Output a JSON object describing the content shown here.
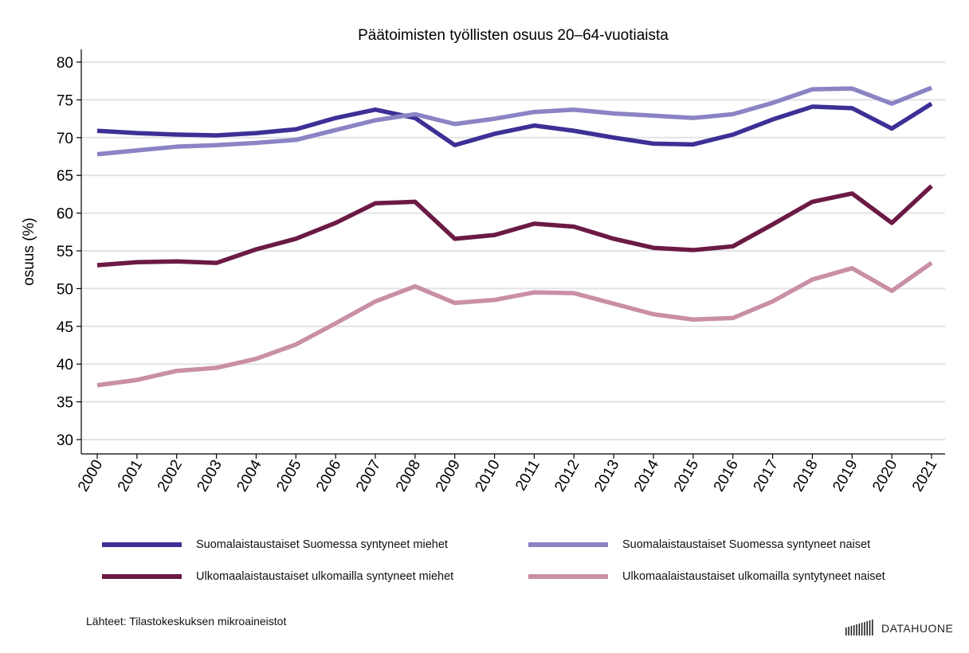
{
  "chart_data": {
    "type": "line",
    "title": "Päätoimisten työllisten osuus 20–64-vuotiaista",
    "xlabel": "",
    "ylabel": "osuus (%)",
    "ylim": [
      30,
      80
    ],
    "yticks": [
      30,
      35,
      40,
      45,
      50,
      55,
      60,
      65,
      70,
      75,
      80
    ],
    "grid": true,
    "legend_placement": "bottom",
    "x": [
      2000,
      2001,
      2002,
      2003,
      2004,
      2005,
      2006,
      2007,
      2008,
      2009,
      2010,
      2011,
      2012,
      2013,
      2014,
      2015,
      2016,
      2017,
      2018,
      2019,
      2020,
      2021
    ],
    "series": [
      {
        "name": "Suomalaistaustaiset Suomessa syntyneet miehet",
        "color": "#3c3096",
        "values": [
          70.9,
          70.6,
          70.4,
          70.3,
          70.6,
          71.1,
          72.6,
          73.7,
          72.6,
          69.0,
          70.5,
          71.6,
          70.9,
          70.0,
          69.2,
          69.1,
          70.4,
          72.4,
          74.1,
          73.9,
          71.2,
          74.5
        ]
      },
      {
        "name": "Suomalaistaustaiset Suomessa syntyneet naiset",
        "color": "#8a84c4",
        "values": [
          67.8,
          68.3,
          68.8,
          69.0,
          69.3,
          69.7,
          71.0,
          72.3,
          73.1,
          71.8,
          72.5,
          73.4,
          73.7,
          73.2,
          72.9,
          72.6,
          73.1,
          74.6,
          76.4,
          76.5,
          74.5,
          76.6
        ]
      },
      {
        "name": "Ulkomaalaistaustaiset ulkomailla syntyneet miehet",
        "color": "#6b1a45",
        "values": [
          53.1,
          53.5,
          53.6,
          53.4,
          55.2,
          56.6,
          58.7,
          61.3,
          61.5,
          56.6,
          57.1,
          58.6,
          58.2,
          56.6,
          55.4,
          55.1,
          55.6,
          58.5,
          61.5,
          62.6,
          58.7,
          63.6
        ]
      },
      {
        "name": "Ulkomaalaistaustaiset ulkomailla syntytyneet naiset",
        "color": "#c98fa6",
        "values": [
          37.2,
          37.9,
          39.1,
          39.5,
          40.7,
          42.6,
          45.4,
          48.3,
          50.3,
          48.1,
          48.5,
          49.5,
          49.4,
          48.0,
          46.6,
          45.9,
          46.1,
          48.3,
          51.2,
          52.7,
          49.7,
          53.4
        ]
      }
    ]
  },
  "source": "Lähteet: Tilastokeskuksen mikroaineistot",
  "logo": "DATAHUONE"
}
